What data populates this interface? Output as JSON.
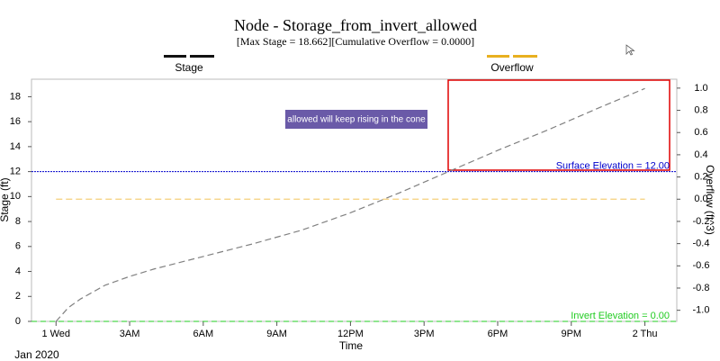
{
  "chart_data": {
    "type": "line",
    "title": "Node - Storage_from_invert_allowed",
    "subtitle": "[Max  Stage = 18.662][Cumulative Overflow = 0.0000]",
    "x_label": "Time",
    "y_label": "Stage (ft)",
    "y2_label": "Overflow (ft^3)",
    "x": [
      0,
      0.5,
      1,
      2,
      3,
      4,
      5,
      6,
      8,
      10,
      12,
      14,
      16,
      18,
      20,
      22,
      24
    ],
    "series": [
      {
        "name": "Stage",
        "color": "#808080",
        "values": [
          0,
          1.1,
          1.8,
          2.9,
          3.6,
          4.2,
          4.7,
          5.2,
          6.2,
          7.3,
          8.7,
          10.3,
          12.0,
          13.7,
          15.3,
          17.0,
          18.66
        ]
      },
      {
        "name": "Overflow",
        "color": "#f5cf7a",
        "axis": "y2",
        "values": [
          0,
          0,
          0,
          0,
          0,
          0,
          0,
          0,
          0,
          0,
          0,
          0,
          0,
          0,
          0,
          0,
          0
        ]
      }
    ],
    "xlim": [
      -1,
      25.3
    ],
    "xticks": [
      {
        "value": 0,
        "label": "1 Wed"
      },
      {
        "value": 3,
        "label": "3AM"
      },
      {
        "value": 6,
        "label": "6AM"
      },
      {
        "value": 9,
        "label": "9AM"
      },
      {
        "value": 12,
        "label": "12PM"
      },
      {
        "value": 15,
        "label": "3PM"
      },
      {
        "value": 18,
        "label": "6PM"
      },
      {
        "value": 21,
        "label": "9PM"
      },
      {
        "value": 24,
        "label": "2 Thu"
      }
    ],
    "x_sublabel": "Jan 2020",
    "ylim": [
      0,
      19.4
    ],
    "yticks": [
      0,
      2,
      4,
      6,
      8,
      10,
      12,
      14,
      16,
      18
    ],
    "y2lim": [
      -1.1,
      1.08
    ],
    "y2ticks": [
      {
        "value": 1.0,
        "label": "1.0"
      },
      {
        "value": 0.8,
        "label": "0.8"
      },
      {
        "value": 0.6,
        "label": "0.6"
      },
      {
        "value": 0.4,
        "label": "0.4"
      },
      {
        "value": 0.2,
        "label": "0.2"
      },
      {
        "value": 0.0,
        "label": "0.0"
      },
      {
        "value": -0.2,
        "label": "-0.2"
      },
      {
        "value": -0.4,
        "label": "-0.4"
      },
      {
        "value": -0.6,
        "label": "-0.6"
      },
      {
        "value": -0.8,
        "label": "-0.8"
      },
      {
        "value": -1.0,
        "label": "-1.0"
      }
    ],
    "reference_lines": [
      {
        "label": "Surface Elevation = 12.00",
        "value": 12,
        "color": "#0000cc"
      },
      {
        "label": "Invert Elevation = 0.00",
        "value": 0,
        "color": "#22cc22"
      }
    ],
    "annotation": "allowed will keep rising in the cone",
    "grid": false
  }
}
